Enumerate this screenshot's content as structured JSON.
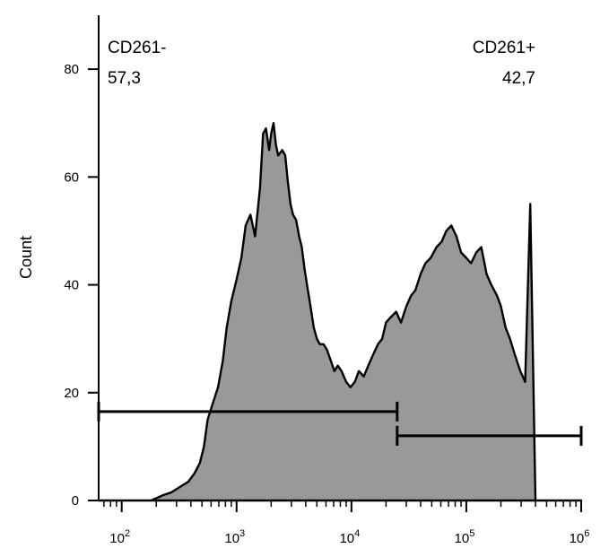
{
  "chart_data": {
    "type": "area",
    "title": "",
    "xlabel": "",
    "ylabel": "Count",
    "x_scale": "log",
    "xlim": [
      63,
      1000000
    ],
    "ylim": [
      0,
      90
    ],
    "grid": false,
    "legend": "none",
    "x_ticks": [
      {
        "value": 100,
        "base": "10",
        "exp": "2"
      },
      {
        "value": 1000,
        "base": "10",
        "exp": "3"
      },
      {
        "value": 10000,
        "base": "10",
        "exp": "4"
      },
      {
        "value": 100000,
        "base": "10",
        "exp": "5"
      },
      {
        "value": 1000000,
        "base": "10",
        "exp": "6"
      }
    ],
    "y_ticks": [
      {
        "value": 0,
        "label": "0"
      },
      {
        "value": 20,
        "label": "20"
      },
      {
        "value": 40,
        "label": "40"
      },
      {
        "value": 60,
        "label": "60"
      },
      {
        "value": 80,
        "label": "80"
      }
    ],
    "colors": {
      "fill": "#999999",
      "stroke": "#000000"
    },
    "histogram": {
      "x": [
        63,
        180,
        230,
        270,
        320,
        380,
        430,
        480,
        520,
        560,
        620,
        690,
        760,
        820,
        900,
        1000,
        1100,
        1200,
        1320,
        1450,
        1600,
        1700,
        1800,
        1920,
        2000,
        2100,
        2200,
        2300,
        2500,
        2650,
        2800,
        2950,
        3100,
        3300,
        3500,
        3700,
        3900,
        4100,
        4400,
        4700,
        5000,
        5300,
        5700,
        6100,
        6600,
        7100,
        7600,
        8200,
        9000,
        9800,
        10700,
        11600,
        12800,
        14000,
        15400,
        17000,
        18500,
        20000,
        22000,
        24500,
        27000,
        30000,
        33000,
        36000,
        40000,
        44000,
        49000,
        55000,
        61000,
        67000,
        74000,
        82000,
        90000,
        100000,
        110000,
        122000,
        135000,
        150000,
        165000,
        185000,
        200000,
        220000,
        240000,
        265000,
        295000,
        325000,
        360000,
        400000,
        450000,
        500000,
        560000,
        620000,
        680000,
        750000,
        820000,
        890000,
        900000,
        950000,
        960000,
        1000000
      ],
      "y": [
        0,
        0,
        1,
        1.5,
        2.5,
        3.5,
        5,
        7,
        10,
        15,
        18,
        21,
        26,
        32,
        37,
        41,
        45,
        51,
        53,
        49,
        58,
        68,
        69,
        65,
        68,
        70,
        66,
        64,
        65,
        64,
        59,
        55,
        53,
        52,
        49,
        47,
        43,
        40,
        36,
        32,
        30,
        29,
        29,
        28,
        26,
        24,
        25,
        24,
        22,
        21,
        22,
        24,
        23,
        25,
        27,
        29,
        30,
        33,
        34,
        35,
        33,
        36,
        38,
        39,
        42,
        44,
        45,
        47,
        48,
        50,
        51,
        49,
        46,
        45,
        44,
        46,
        47,
        42,
        40,
        38,
        36,
        32,
        30,
        27,
        24,
        22,
        55,
        0,
        0,
        0,
        0,
        0,
        0,
        0,
        0,
        0,
        0,
        0,
        0,
        0
      ]
    },
    "gates": [
      {
        "name": "CD261-",
        "value": "57,3",
        "x_start": 63,
        "x_end": 25000,
        "y": 16.5
      },
      {
        "name": "CD261+",
        "value": "42,7",
        "x_start": 25000,
        "x_end": 1000000,
        "y": 12
      }
    ]
  }
}
